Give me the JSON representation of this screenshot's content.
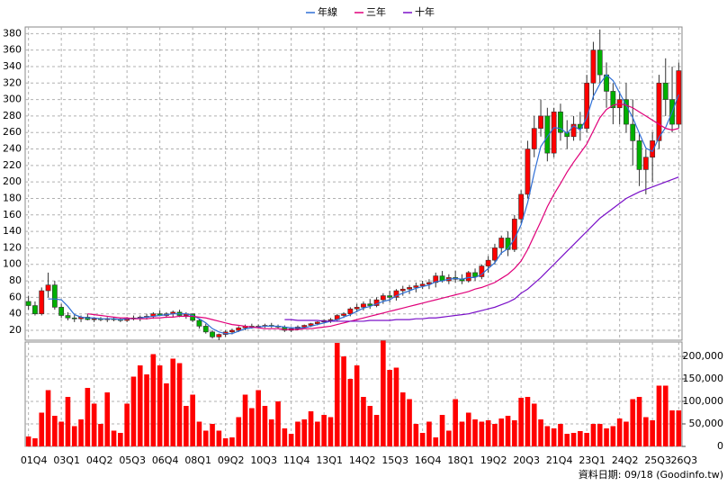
{
  "chart_data": [
    {
      "type": "candlestick",
      "source": "資料日期: 09/18 (Goodinfo.tw)",
      "categories": [
        "01Q4",
        null,
        null,
        null,
        null,
        "03Q1",
        null,
        null,
        null,
        null,
        "04Q2",
        null,
        null,
        null,
        null,
        "05Q3",
        null,
        null,
        null,
        null,
        "06Q4",
        null,
        null,
        null,
        null,
        "08Q1",
        null,
        null,
        null,
        null,
        "09Q2",
        null,
        null,
        null,
        null,
        "10Q3",
        null,
        null,
        null,
        null,
        "11Q4",
        null,
        null,
        null,
        null,
        "13Q1",
        null,
        null,
        null,
        null,
        "14Q2",
        null,
        null,
        null,
        null,
        "15Q3",
        null,
        null,
        null,
        null,
        "16Q4",
        null,
        null,
        null,
        null,
        "18Q1",
        null,
        null,
        null,
        null,
        "19Q2",
        null,
        null,
        null,
        null,
        "20Q3",
        null,
        null,
        null,
        null,
        "21Q4",
        null,
        null,
        null,
        null,
        "23Q1",
        null,
        null,
        null,
        null,
        "24Q2",
        null,
        null,
        null,
        null,
        "25Q3",
        null,
        null,
        null,
        "26Q3"
      ],
      "open": [
        55,
        50,
        40,
        68,
        75,
        48,
        38,
        35,
        34,
        36,
        33,
        34,
        33,
        34,
        33,
        32,
        35,
        34,
        36,
        37,
        40,
        38,
        40,
        42,
        38,
        40,
        32,
        25,
        18,
        12,
        15,
        18,
        20,
        23,
        25,
        24,
        25,
        26,
        25,
        24,
        20,
        22,
        24,
        26,
        28,
        30,
        32,
        33,
        38,
        40,
        46,
        48,
        52,
        50,
        57,
        62,
        60,
        68,
        70,
        72,
        74,
        76,
        78,
        86,
        80,
        84,
        82,
        80,
        90,
        85,
        98,
        105,
        120,
        132,
        118,
        155,
        185,
        240,
        265,
        280,
        235,
        285,
        260,
        255,
        270,
        265,
        320,
        360,
        330,
        310,
        290,
        300,
        270,
        250,
        215,
        230,
        250,
        320,
        300,
        270
      ],
      "high": [
        62,
        55,
        72,
        90,
        80,
        52,
        42,
        40,
        38,
        40,
        36,
        36,
        36,
        36,
        35,
        36,
        38,
        38,
        40,
        42,
        44,
        42,
        44,
        45,
        42,
        40,
        34,
        28,
        20,
        16,
        20,
        22,
        25,
        27,
        28,
        27,
        28,
        29,
        27,
        26,
        24,
        26,
        27,
        29,
        31,
        33,
        35,
        40,
        42,
        48,
        52,
        55,
        58,
        60,
        65,
        68,
        70,
        74,
        75,
        78,
        80,
        82,
        90,
        92,
        88,
        92,
        88,
        92,
        95,
        100,
        110,
        125,
        135,
        140,
        160,
        190,
        250,
        280,
        300,
        290,
        290,
        295,
        275,
        280,
        285,
        330,
        370,
        385,
        345,
        320,
        310,
        320,
        300,
        260,
        240,
        260,
        330,
        350,
        340,
        345
      ],
      "low": [
        45,
        38,
        38,
        60,
        45,
        35,
        32,
        30,
        30,
        32,
        30,
        31,
        30,
        31,
        30,
        30,
        32,
        31,
        33,
        34,
        37,
        35,
        36,
        36,
        34,
        30,
        22,
        16,
        10,
        8,
        12,
        15,
        18,
        20,
        22,
        22,
        23,
        23,
        22,
        18,
        18,
        20,
        22,
        24,
        26,
        28,
        29,
        31,
        35,
        37,
        42,
        44,
        46,
        48,
        52,
        54,
        56,
        62,
        64,
        66,
        70,
        70,
        72,
        78,
        76,
        78,
        76,
        78,
        80,
        82,
        90,
        100,
        112,
        110,
        115,
        150,
        180,
        230,
        255,
        225,
        230,
        250,
        240,
        250,
        250,
        260,
        300,
        320,
        290,
        270,
        270,
        260,
        220,
        195,
        185,
        200,
        240,
        280,
        260,
        265
      ],
      "close": [
        50,
        40,
        68,
        75,
        48,
        38,
        35,
        34,
        36,
        33,
        34,
        33,
        34,
        33,
        32,
        35,
        34,
        36,
        37,
        40,
        38,
        40,
        42,
        38,
        40,
        32,
        25,
        18,
        12,
        15,
        18,
        20,
        23,
        25,
        24,
        25,
        26,
        25,
        24,
        20,
        22,
        24,
        26,
        28,
        30,
        32,
        33,
        38,
        40,
        46,
        48,
        52,
        50,
        57,
        62,
        60,
        68,
        70,
        72,
        74,
        76,
        78,
        86,
        80,
        84,
        82,
        80,
        90,
        85,
        98,
        105,
        120,
        132,
        118,
        155,
        185,
        240,
        265,
        280,
        235,
        285,
        260,
        255,
        270,
        265,
        320,
        360,
        330,
        310,
        290,
        300,
        270,
        250,
        215,
        230,
        250,
        320,
        300,
        270,
        335
      ],
      "up_color": "#ff0000",
      "down_color": "#00b000",
      "series": [
        {
          "name": "年線",
          "color": "#2f6fd6",
          "values": [
            null,
            null,
            null,
            58,
            58,
            57,
            49,
            39,
            36,
            35,
            35,
            34,
            34,
            34,
            33,
            34,
            34,
            35,
            36,
            37,
            38,
            39,
            40,
            40,
            40,
            38,
            34,
            29,
            22,
            18,
            16,
            16,
            19,
            22,
            23,
            24,
            25,
            25,
            25,
            24,
            23,
            23,
            23,
            25,
            27,
            29,
            31,
            33,
            36,
            39,
            43,
            47,
            49,
            52,
            55,
            57,
            62,
            65,
            68,
            71,
            73,
            75,
            79,
            80,
            82,
            83,
            82,
            84,
            84,
            88,
            95,
            102,
            114,
            119,
            131,
            148,
            175,
            211,
            243,
            255,
            266,
            265,
            259,
            268,
            263,
            278,
            304,
            319,
            330,
            323,
            308,
            293,
            278,
            259,
            241,
            237,
            254,
            266,
            285,
            306
          ]
        },
        {
          "name": "三年",
          "color": "#e0007a",
          "values": [
            null,
            null,
            null,
            null,
            null,
            null,
            null,
            null,
            null,
            40,
            39,
            38,
            37,
            36,
            35,
            35,
            34,
            34,
            34,
            35,
            35,
            36,
            36,
            37,
            37,
            37,
            36,
            35,
            33,
            31,
            29,
            27,
            26,
            25,
            24,
            23,
            22,
            22,
            22,
            21,
            21,
            21,
            22,
            22,
            23,
            24,
            25,
            27,
            29,
            31,
            33,
            35,
            37,
            39,
            41,
            43,
            45,
            47,
            49,
            51,
            53,
            55,
            57,
            59,
            61,
            63,
            65,
            67,
            70,
            72,
            75,
            78,
            83,
            88,
            95,
            104,
            118,
            135,
            152,
            170,
            185,
            198,
            212,
            224,
            235,
            246,
            262,
            278,
            288,
            293,
            295,
            293,
            290,
            285,
            280,
            275,
            270,
            265,
            263,
            265
          ]
        },
        {
          "name": "十年",
          "color": "#7a10c8",
          "values": [
            null,
            null,
            null,
            null,
            null,
            null,
            null,
            null,
            null,
            null,
            null,
            null,
            null,
            null,
            null,
            null,
            null,
            null,
            null,
            null,
            null,
            null,
            null,
            null,
            null,
            null,
            null,
            null,
            null,
            null,
            null,
            null,
            null,
            null,
            null,
            null,
            null,
            null,
            null,
            33,
            33,
            32,
            32,
            32,
            32,
            31,
            31,
            31,
            31,
            31,
            31,
            31,
            32,
            32,
            32,
            32,
            33,
            33,
            33,
            34,
            34,
            35,
            35,
            36,
            37,
            38,
            39,
            40,
            42,
            44,
            46,
            48,
            51,
            54,
            58,
            65,
            70,
            77,
            84,
            92,
            100,
            108,
            116,
            124,
            132,
            140,
            148,
            156,
            162,
            168,
            174,
            180,
            184,
            188,
            191,
            194,
            197,
            200,
            203,
            206
          ]
        }
      ],
      "ylim": [
        8,
        388
      ],
      "yticks": [
        20,
        40,
        60,
        80,
        100,
        120,
        140,
        160,
        180,
        200,
        220,
        240,
        260,
        280,
        300,
        320,
        340,
        360,
        380
      ],
      "grid": true
    },
    {
      "type": "bar",
      "color": "#ff0000",
      "values": [
        22000,
        18000,
        75000,
        125000,
        68000,
        55000,
        110000,
        45000,
        60000,
        130000,
        95000,
        50000,
        120000,
        35000,
        30000,
        95000,
        155000,
        180000,
        160000,
        205000,
        180000,
        140000,
        195000,
        185000,
        90000,
        115000,
        55000,
        35000,
        50000,
        35000,
        18000,
        20000,
        65000,
        115000,
        85000,
        125000,
        90000,
        60000,
        100000,
        40000,
        28000,
        55000,
        60000,
        78000,
        55000,
        70000,
        65000,
        230000,
        200000,
        150000,
        180000,
        110000,
        90000,
        70000,
        235000,
        170000,
        175000,
        120000,
        105000,
        50000,
        30000,
        55000,
        20000,
        70000,
        35000,
        105000,
        55000,
        75000,
        60000,
        55000,
        58000,
        50000,
        62000,
        68000,
        58000,
        108000,
        110000,
        95000,
        60000,
        45000,
        40000,
        50000,
        28000,
        30000,
        34000,
        30000,
        50000,
        50000,
        40000,
        45000,
        62000,
        55000,
        105000,
        110000,
        65000,
        58000,
        135000,
        135000,
        80000,
        80000
      ],
      "ylim": [
        0,
        232000
      ],
      "yticks": [
        0,
        {
          "value": 50000,
          "label": "50,000"
        },
        {
          "value": 100000,
          "label": "100,000"
        },
        {
          "value": 150000,
          "label": "150,000"
        },
        {
          "value": 200000,
          "label": "200,000"
        }
      ],
      "grid": true
    }
  ]
}
